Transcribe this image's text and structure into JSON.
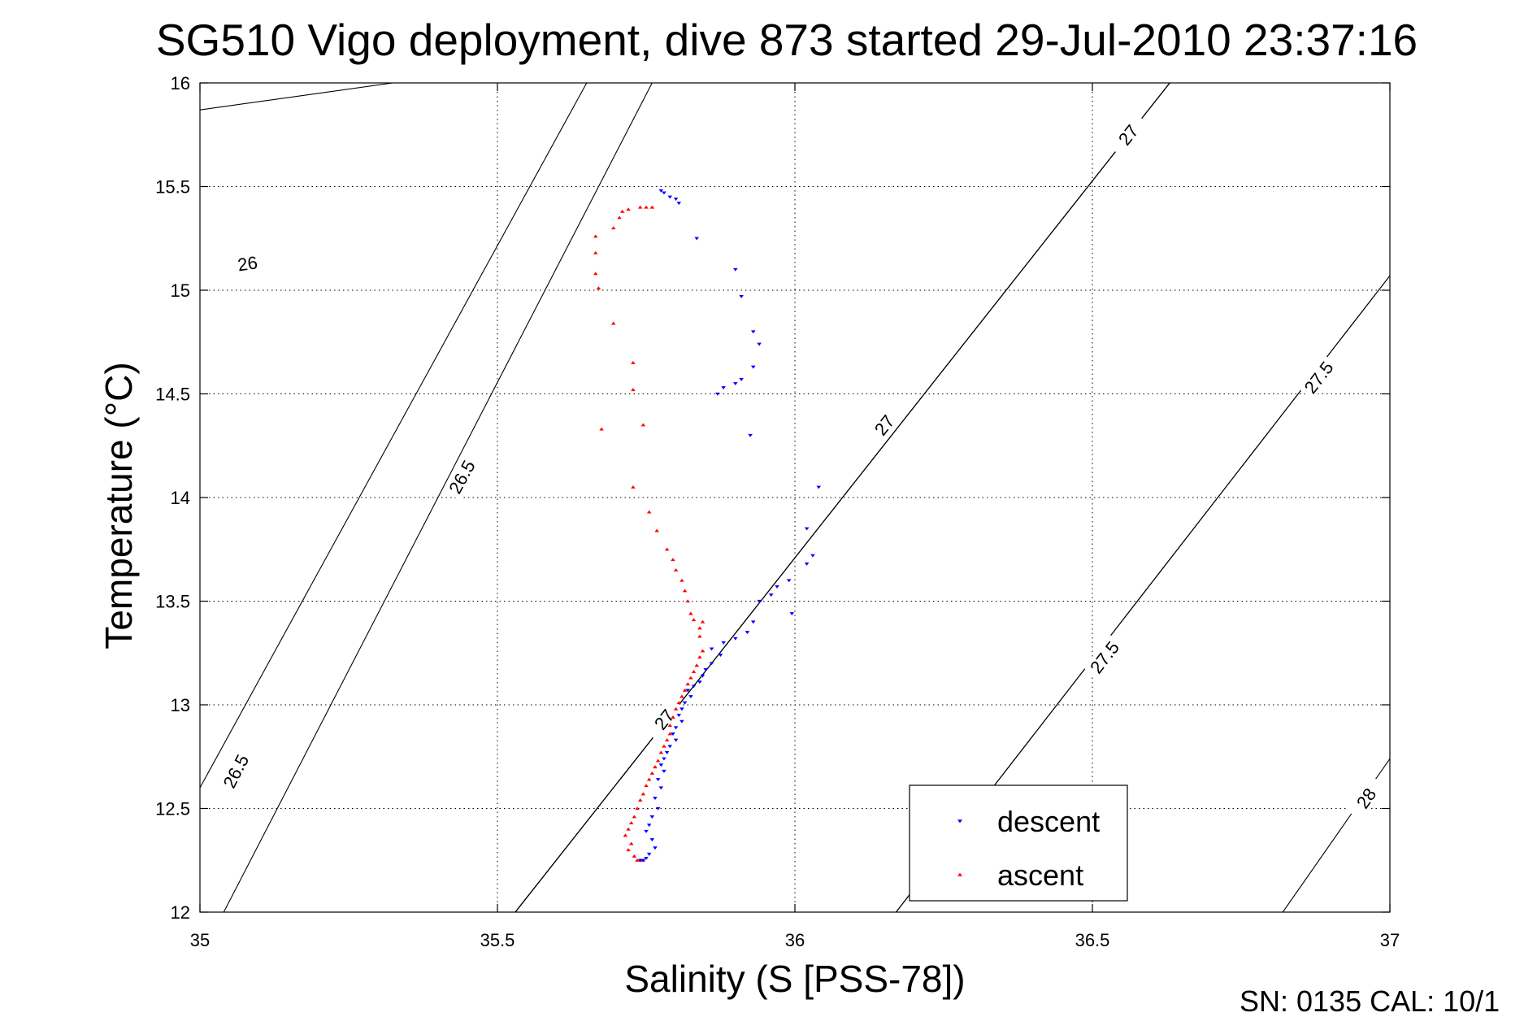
{
  "chart_data": {
    "type": "scatter",
    "title": "SG510 Vigo deployment, dive 873 started 29-Jul-2010 23:37:16",
    "xlabel": "Salinity (S [PSS-78])",
    "ylabel": "Temperature (°C)",
    "xlim": [
      35,
      37
    ],
    "ylim": [
      12,
      16
    ],
    "xticks": [
      35,
      35.5,
      36,
      36.5,
      37
    ],
    "xtick_labels": [
      "35",
      "35.5",
      "36",
      "36.5",
      "37"
    ],
    "yticks": [
      12,
      12.5,
      13,
      13.5,
      14,
      14.5,
      15,
      15.5,
      16
    ],
    "ytick_labels": [
      "12",
      "12.5",
      "13",
      "13.5",
      "14",
      "14.5",
      "15",
      "15.5",
      "16"
    ],
    "grid": true,
    "legend": "bottom-right",
    "footer_text": "SN: 0135  CAL: 10/1",
    "density_contours": [
      {
        "level": "26",
        "points": [
          [
            35.0,
            15.87
          ],
          [
            35.324,
            16.0
          ]
        ],
        "label_at": [
          35.08,
          15.13
        ]
      },
      {
        "level": "26.5",
        "points": [
          [
            35.0,
            12.6
          ],
          [
            35.65,
            16.0
          ]
        ],
        "label_at": [
          35.44,
          14.1
        ]
      },
      {
        "level": "26.5",
        "points": [
          [
            35.04,
            12.0
          ],
          [
            35.76,
            16.0
          ]
        ],
        "label_at": [
          35.06,
          12.68
        ]
      },
      {
        "level": "27",
        "points": [
          [
            35.53,
            12.0
          ],
          [
            36.63,
            16.0
          ]
        ],
        "label_at": [
          35.78,
          12.93
        ]
      },
      {
        "level": "27",
        "points": [
          [
            35.53,
            12.0
          ],
          [
            36.63,
            16.0
          ]
        ],
        "label_at": [
          36.15,
          14.35
        ]
      },
      {
        "level": "27",
        "points": [
          [
            35.53,
            12.0
          ],
          [
            36.63,
            16.0
          ]
        ],
        "label_at": [
          36.56,
          15.75
        ]
      },
      {
        "level": "27.5",
        "points": [
          [
            36.17,
            12.0
          ],
          [
            37.0,
            15.07
          ]
        ],
        "label_at": [
          36.52,
          13.23
        ]
      },
      {
        "level": "27.5",
        "points": [
          [
            36.17,
            12.0
          ],
          [
            37.0,
            15.07
          ]
        ],
        "label_at": [
          36.88,
          14.58
        ]
      },
      {
        "level": "28",
        "points": [
          [
            36.82,
            12.0
          ],
          [
            37.0,
            12.74
          ]
        ],
        "label_at": [
          36.96,
          12.55
        ]
      }
    ],
    "series": [
      {
        "name": "descent",
        "color": "#0000ff",
        "marker": "triangle-down",
        "points": [
          [
            35.78,
            15.47
          ],
          [
            35.775,
            15.48
          ],
          [
            35.79,
            15.45
          ],
          [
            35.8,
            15.44
          ],
          [
            35.805,
            15.42
          ],
          [
            35.835,
            15.25
          ],
          [
            35.9,
            15.1
          ],
          [
            35.91,
            14.97
          ],
          [
            35.93,
            14.8
          ],
          [
            35.94,
            14.74
          ],
          [
            35.93,
            14.63
          ],
          [
            35.91,
            14.57
          ],
          [
            35.9,
            14.55
          ],
          [
            35.88,
            14.53
          ],
          [
            35.87,
            14.5
          ],
          [
            35.925,
            14.3
          ],
          [
            36.04,
            14.05
          ],
          [
            36.02,
            13.85
          ],
          [
            36.03,
            13.72
          ],
          [
            36.02,
            13.68
          ],
          [
            35.99,
            13.6
          ],
          [
            35.97,
            13.57
          ],
          [
            35.96,
            13.53
          ],
          [
            35.94,
            13.5
          ],
          [
            35.995,
            13.44
          ],
          [
            35.93,
            13.4
          ],
          [
            35.92,
            13.35
          ],
          [
            35.9,
            13.32
          ],
          [
            35.88,
            13.3
          ],
          [
            35.86,
            13.27
          ],
          [
            35.875,
            13.24
          ],
          [
            35.86,
            13.2
          ],
          [
            35.85,
            13.17
          ],
          [
            35.845,
            13.14
          ],
          [
            35.84,
            13.11
          ],
          [
            35.83,
            13.09
          ],
          [
            35.82,
            13.07
          ],
          [
            35.825,
            13.04
          ],
          [
            35.815,
            13.01
          ],
          [
            35.81,
            12.98
          ],
          [
            35.805,
            12.95
          ],
          [
            35.81,
            12.92
          ],
          [
            35.8,
            12.89
          ],
          [
            35.795,
            12.86
          ],
          [
            35.8,
            12.83
          ],
          [
            35.79,
            12.8
          ],
          [
            35.785,
            12.77
          ],
          [
            35.78,
            12.74
          ],
          [
            35.775,
            12.71
          ],
          [
            35.78,
            12.68
          ],
          [
            35.77,
            12.64
          ],
          [
            35.775,
            12.6
          ],
          [
            35.765,
            12.55
          ],
          [
            35.77,
            12.5
          ],
          [
            35.76,
            12.46
          ],
          [
            35.755,
            12.42
          ],
          [
            35.75,
            12.39
          ],
          [
            35.76,
            12.35
          ],
          [
            35.765,
            12.31
          ],
          [
            35.755,
            12.28
          ],
          [
            35.75,
            12.26
          ],
          [
            35.745,
            12.25
          ],
          [
            35.74,
            12.25
          ]
        ]
      },
      {
        "name": "ascent",
        "color": "#ff0000",
        "marker": "triangle-up",
        "points": [
          [
            35.76,
            15.4
          ],
          [
            35.75,
            15.4
          ],
          [
            35.74,
            15.4
          ],
          [
            35.72,
            15.39
          ],
          [
            35.71,
            15.38
          ],
          [
            35.705,
            15.35
          ],
          [
            35.695,
            15.3
          ],
          [
            35.665,
            15.26
          ],
          [
            35.665,
            15.18
          ],
          [
            35.665,
            15.08
          ],
          [
            35.67,
            15.01
          ],
          [
            35.695,
            14.84
          ],
          [
            35.728,
            14.65
          ],
          [
            35.728,
            14.52
          ],
          [
            35.745,
            14.35
          ],
          [
            35.675,
            14.33
          ],
          [
            35.728,
            14.05
          ],
          [
            35.755,
            13.93
          ],
          [
            35.768,
            13.84
          ],
          [
            35.785,
            13.75
          ],
          [
            35.795,
            13.7
          ],
          [
            35.8,
            13.65
          ],
          [
            35.81,
            13.6
          ],
          [
            35.815,
            13.55
          ],
          [
            35.82,
            13.5
          ],
          [
            35.825,
            13.44
          ],
          [
            35.83,
            13.41
          ],
          [
            35.845,
            13.4
          ],
          [
            35.84,
            13.37
          ],
          [
            35.84,
            13.33
          ],
          [
            35.845,
            13.26
          ],
          [
            35.84,
            13.23
          ],
          [
            35.835,
            13.19
          ],
          [
            35.83,
            13.16
          ],
          [
            35.825,
            13.13
          ],
          [
            35.82,
            13.1
          ],
          [
            35.815,
            13.07
          ],
          [
            35.81,
            13.04
          ],
          [
            35.805,
            13.01
          ],
          [
            35.8,
            12.98
          ],
          [
            35.795,
            12.94
          ],
          [
            35.79,
            12.9
          ],
          [
            35.79,
            12.86
          ],
          [
            35.785,
            12.83
          ],
          [
            35.78,
            12.8
          ],
          [
            35.775,
            12.77
          ],
          [
            35.77,
            12.73
          ],
          [
            35.765,
            12.7
          ],
          [
            35.76,
            12.67
          ],
          [
            35.755,
            12.64
          ],
          [
            35.75,
            12.61
          ],
          [
            35.745,
            12.57
          ],
          [
            35.74,
            12.54
          ],
          [
            35.735,
            12.5
          ],
          [
            35.73,
            12.46
          ],
          [
            35.725,
            12.43
          ],
          [
            35.72,
            12.4
          ],
          [
            35.715,
            12.37
          ],
          [
            35.725,
            12.33
          ],
          [
            35.72,
            12.3
          ],
          [
            35.73,
            12.27
          ],
          [
            35.735,
            12.25
          ],
          [
            35.74,
            12.25
          ],
          [
            35.745,
            12.25
          ]
        ]
      }
    ]
  }
}
